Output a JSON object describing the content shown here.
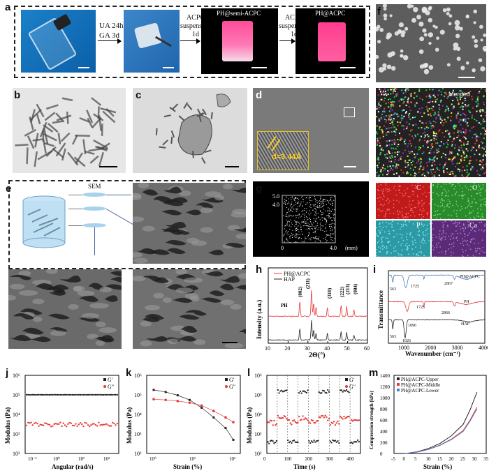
{
  "panel_labels": {
    "a": "a",
    "b": "b",
    "c": "c",
    "d": "d",
    "e": "e",
    "f": "f",
    "g": "g",
    "h": "h",
    "i": "i",
    "j": "j",
    "k": "k",
    "l": "l",
    "m": "m"
  },
  "panel_a": {
    "step1_line1": "UA 24h",
    "step1_line2": "GA 3d",
    "step2_line1": "ACPC",
    "step2_line2": "suspension",
    "step2_line3": "1d",
    "step3_line1": "ACPC",
    "step3_line2": "suspension",
    "step3_line3": "1d",
    "title_semi": "PH@semi-ACPC",
    "title_full": "PH@ACPC"
  },
  "panel_d": {
    "spacing": "d=3.44Å"
  },
  "panel_e": {
    "sem_label": "SEM"
  },
  "panel_f": {
    "merged": "Merged",
    "C": "C",
    "O": "O",
    "P": "P",
    "Ca": "Ca"
  },
  "panel_g": {
    "y_top": "5.0",
    "y_mid": "4.0",
    "x_zero": "0",
    "x_end": "4.0",
    "unit": "(mm)"
  },
  "colors": {
    "red": "#e83a3a",
    "blue": "#4a7fc1",
    "black": "#222222",
    "pink": "#ff5fa2"
  },
  "chart_data": [
    {
      "panel": "h",
      "type": "line",
      "xlabel": "2Θ(°)",
      "ylabel": "Intensity (a.u.)",
      "xlim": [
        10,
        60
      ],
      "xticks": [
        "10",
        "20",
        "30",
        "40",
        "50",
        "60"
      ],
      "legend": [
        "PH@ACPC",
        "HAP"
      ],
      "annotations": [
        "PH",
        "(002)",
        "(211)",
        "(310)",
        "(222)",
        "(213)",
        "(004)"
      ]
    },
    {
      "panel": "i",
      "type": "line",
      "xlabel": "Wavenumber (cm⁻¹)",
      "ylabel": "Transmittance",
      "xlim": [
        400,
        4000
      ],
      "xticks": [
        "1000",
        "2000",
        "3000",
        "4000"
      ],
      "series_labels": [
        "PH@ACPC",
        "PH",
        "HAP"
      ],
      "annotations": [
        "563",
        "1725",
        "2867",
        "1725",
        "2866",
        "1096",
        "563",
        "1026"
      ]
    },
    {
      "panel": "j",
      "type": "scatter",
      "xlabel": "Angular (rad/s)",
      "ylabel": "Modulus (Pa)",
      "xticks": [
        "10⁻¹",
        "10⁰",
        "10¹",
        "10²"
      ],
      "yticks": [
        "10²",
        "10³",
        "10⁴",
        "10⁵",
        "10⁶"
      ],
      "legend": [
        "G'",
        "G\""
      ],
      "series": [
        {
          "name": "G'",
          "values": [
            100000
          ]
        },
        {
          "name": "G\"",
          "values": [
            3000
          ]
        }
      ]
    },
    {
      "panel": "k",
      "type": "scatter",
      "xlabel": "Strain (%)",
      "ylabel": "Modulus (Pa)",
      "xticks": [
        "10⁰",
        "10¹",
        "10²"
      ],
      "yticks": [
        "10²",
        "10³",
        "10⁴",
        "10⁵",
        "10⁶"
      ],
      "legend": [
        "G'",
        "G\""
      ],
      "x": [
        1,
        2,
        4,
        8,
        16,
        32,
        64,
        100
      ],
      "series": [
        {
          "name": "G'",
          "values": [
            180000,
            140000,
            95000,
            55000,
            22000,
            7000,
            2000,
            500
          ]
        },
        {
          "name": "G\"",
          "values": [
            60000,
            55000,
            48000,
            40000,
            28000,
            15000,
            7000,
            4000
          ]
        }
      ]
    },
    {
      "panel": "l",
      "type": "scatter",
      "xlabel": "Time (s)",
      "ylabel": "Modulus (Pa)",
      "xticks": [
        "0",
        "100",
        "200",
        "300",
        "400"
      ],
      "yticks": [
        "10²",
        "10³",
        "10⁴",
        "10⁵",
        "10⁶"
      ],
      "legend": [
        "G'",
        "G\""
      ]
    },
    {
      "panel": "m",
      "type": "line",
      "xlabel": "Strain (%)",
      "ylabel": "Compression strength (kPa)",
      "xticks": [
        "-5",
        "0",
        "5",
        "10",
        "15",
        "20",
        "25",
        "30",
        "35"
      ],
      "yticks": [
        "0",
        "200",
        "400",
        "600",
        "800",
        "1000",
        "1200",
        "1400"
      ],
      "legend": [
        "PH@ACPC-Upper",
        "PH@ACPC-Middle",
        "PH@ACPC-Lower"
      ],
      "series": [
        {
          "name": "PH@ACPC-Upper",
          "values": [
            0,
            30,
            90,
            180,
            320,
            520,
            780,
            1100
          ]
        },
        {
          "name": "PH@ACPC-Middle",
          "values": [
            0,
            25,
            75,
            150,
            260,
            410,
            600,
            830
          ]
        },
        {
          "name": "PH@ACPC-Lower",
          "values": [
            0,
            25,
            72,
            145,
            250,
            395,
            580,
            800
          ]
        }
      ],
      "x": [
        0,
        5,
        10,
        15,
        20,
        25,
        28,
        31
      ]
    }
  ]
}
